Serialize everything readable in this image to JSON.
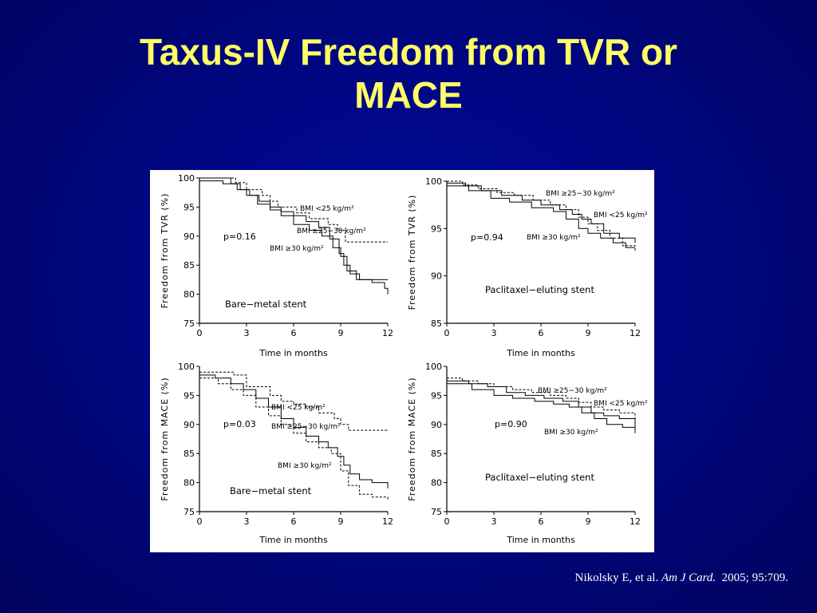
{
  "slide": {
    "title_line1": "Taxus-IV Freedom from TVR or",
    "title_line2": "MACE",
    "title_color": "#ffff66",
    "background_color": "#000682"
  },
  "citation": {
    "authors": "Nikolsky E, et al.",
    "journal": "Am J Card.",
    "details": "2005; 95:709."
  },
  "chart_data": [
    {
      "type": "line",
      "step": true,
      "ylabel": "Freedom from TVR (%)",
      "xlabel": "Time in months",
      "xlim": [
        0,
        12
      ],
      "ylim": [
        75,
        100
      ],
      "xticks": [
        0,
        3,
        6,
        9,
        12
      ],
      "yticks": [
        75,
        80,
        85,
        90,
        95,
        100
      ],
      "p_value": "p=0.16",
      "panel_label": "Bare−metal stent",
      "series": [
        {
          "name": "BMI <25 kg/m²",
          "style": "dashed",
          "x": [
            0,
            2.3,
            3.0,
            4.0,
            4.5,
            5.0,
            6.2,
            7.0,
            8.2,
            8.8,
            9.3,
            12.0
          ],
          "y": [
            100,
            99.2,
            98.0,
            97.0,
            96.0,
            95.0,
            94.0,
            93.0,
            92.0,
            91.0,
            89.0,
            89.0
          ]
        },
        {
          "name": "BMI ≥25–30 kg/m²",
          "style": "solid",
          "x": [
            0,
            2.0,
            2.6,
            3.2,
            3.8,
            4.5,
            5.2,
            6.0,
            6.8,
            7.6,
            8.3,
            8.9,
            9.2,
            9.6,
            10.2,
            12.0
          ],
          "y": [
            100,
            99.0,
            98.0,
            97.0,
            96.0,
            95.0,
            94.2,
            93.5,
            92.5,
            91.5,
            89.5,
            87.0,
            85.0,
            83.5,
            82.5,
            82.5
          ]
        },
        {
          "name": "BMI ≥30 kg/m²",
          "style": "solid",
          "x": [
            0,
            1.5,
            2.4,
            3.0,
            3.7,
            4.5,
            5.2,
            6.0,
            7.0,
            7.8,
            8.5,
            9.0,
            9.4,
            10.0,
            11.0,
            11.8,
            12.0
          ],
          "y": [
            99.5,
            99.0,
            98.0,
            97.0,
            95.5,
            94.5,
            93.5,
            92.0,
            91.0,
            90.0,
            88.0,
            86.5,
            84.0,
            82.5,
            82.0,
            81.0,
            80.0
          ]
        }
      ],
      "labels": [
        "BMI <25 kg/m²",
        "BMI ≥25−30 kg/m²",
        "BMI ≥30 kg/m²"
      ]
    },
    {
      "type": "line",
      "step": true,
      "ylabel": "Freedom from TVR (%)",
      "xlabel": "Time in months",
      "xlim": [
        0,
        12
      ],
      "ylim": [
        85,
        100
      ],
      "xticks": [
        0,
        3,
        6,
        9,
        12
      ],
      "yticks": [
        85,
        90,
        95,
        100
      ],
      "p_value": "p=0.94",
      "panel_label": "Paclitaxel−eluting stent",
      "series": [
        {
          "name": "BMI ≥25–30 kg/m²",
          "style": "dashed",
          "x": [
            0,
            1.0,
            2.0,
            3.2,
            4.3,
            5.5,
            6.6,
            7.6,
            8.4,
            9.0,
            9.6,
            10.4,
            11.2,
            12.0
          ],
          "y": [
            100,
            99.6,
            99.2,
            98.8,
            98.5,
            98.0,
            97.5,
            97.0,
            96.2,
            95.5,
            94.8,
            94.0,
            93.2,
            92.5
          ]
        },
        {
          "name": "BMI <25 kg/m²",
          "style": "solid",
          "x": [
            0,
            1.2,
            2.2,
            3.5,
            4.8,
            6.0,
            7.2,
            8.0,
            8.6,
            9.2,
            10.0,
            11.0,
            12.0
          ],
          "y": [
            99.8,
            99.5,
            99.0,
            98.5,
            98.0,
            97.5,
            97.0,
            96.5,
            96.0,
            95.5,
            94.5,
            94.0,
            93.5
          ]
        },
        {
          "name": "BMI ≥30 kg/m²",
          "style": "solid",
          "x": [
            0,
            1.4,
            2.8,
            4.0,
            5.4,
            6.8,
            7.6,
            8.4,
            9.0,
            9.8,
            10.6,
            11.4,
            12.0
          ],
          "y": [
            99.5,
            99.0,
            98.2,
            97.8,
            97.2,
            96.8,
            96.0,
            95.0,
            94.5,
            94.0,
            93.5,
            93.0,
            93.0
          ]
        }
      ],
      "labels": [
        "BMI ≥25−30 kg/m²",
        "BMI <25 kg/m²",
        "BMI ≥30 kg/m²"
      ]
    },
    {
      "type": "line",
      "step": true,
      "ylabel": "Freedom from MACE (%)",
      "xlabel": "Time in months",
      "xlim": [
        0,
        12
      ],
      "ylim": [
        75,
        100
      ],
      "xticks": [
        0,
        3,
        6,
        9,
        12
      ],
      "yticks": [
        75,
        80,
        85,
        90,
        95,
        100
      ],
      "p_value": "p=0.03",
      "panel_label": "Bare−metal stent",
      "series": [
        {
          "name": "BMI <25 kg/m²",
          "style": "dashed",
          "x": [
            0,
            2.2,
            3.0,
            4.5,
            5.2,
            6.0,
            6.8,
            7.6,
            8.6,
            9.0,
            9.5,
            12.0
          ],
          "y": [
            99.0,
            98.5,
            96.5,
            95.0,
            94.0,
            93.5,
            93.0,
            92.0,
            91.0,
            90.0,
            89.0,
            89.0
          ]
        },
        {
          "name": "BMI ≥25–30 kg/m²",
          "style": "solid",
          "x": [
            0,
            1.0,
            2.0,
            2.8,
            3.6,
            4.4,
            5.2,
            6.0,
            6.8,
            7.6,
            8.2,
            8.8,
            9.2,
            9.6,
            10.2,
            11.0,
            12.0
          ],
          "y": [
            98.5,
            98.0,
            97.0,
            96.0,
            94.5,
            93.0,
            91.0,
            89.5,
            88.0,
            87.0,
            86.0,
            84.5,
            83.0,
            81.5,
            80.5,
            80.0,
            79.0
          ]
        },
        {
          "name": "BMI ≥30 kg/m²",
          "style": "dashed",
          "x": [
            0,
            1.2,
            2.0,
            2.8,
            3.6,
            4.4,
            5.2,
            6.0,
            6.8,
            7.6,
            8.4,
            9.0,
            9.5,
            10.2,
            11.0,
            12.0
          ],
          "y": [
            98.0,
            97.0,
            96.0,
            95.0,
            93.0,
            91.5,
            90.0,
            88.5,
            87.0,
            86.0,
            85.0,
            82.0,
            79.5,
            78.0,
            77.5,
            77.0
          ]
        }
      ],
      "labels": [
        "BMI <25 kg/m²",
        "BMI ≥25−30 kg/m²",
        "BMI ≥30 kg/m²"
      ]
    },
    {
      "type": "line",
      "step": true,
      "ylabel": "Freedom from MACE (%)",
      "xlabel": "Time in months",
      "xlim": [
        0,
        12
      ],
      "ylim": [
        75,
        100
      ],
      "xticks": [
        0,
        3,
        6,
        9,
        12
      ],
      "yticks": [
        75,
        80,
        85,
        90,
        95,
        100
      ],
      "p_value": "p=0.90",
      "panel_label": "Paclitaxel−eluting stent",
      "series": [
        {
          "name": "BMI ≥25–30 kg/m²",
          "style": "dashed",
          "x": [
            0,
            1.0,
            2.0,
            3.0,
            4.2,
            5.4,
            6.6,
            7.6,
            8.4,
            9.2,
            10.0,
            11.0,
            12.0
          ],
          "y": [
            98.0,
            97.5,
            97.0,
            96.5,
            96.0,
            95.5,
            95.0,
            94.5,
            93.8,
            93.0,
            92.5,
            92.0,
            90.5
          ]
        },
        {
          "name": "BMI <25 kg/m²",
          "style": "solid",
          "x": [
            0,
            1.4,
            2.6,
            3.8,
            5.0,
            6.2,
            7.4,
            8.4,
            9.2,
            10.0,
            11.0,
            12.0
          ],
          "y": [
            97.5,
            97.0,
            96.5,
            95.5,
            95.0,
            94.5,
            94.0,
            93.0,
            92.0,
            91.5,
            91.0,
            89.5
          ]
        },
        {
          "name": "BMI ≥30 kg/m²",
          "style": "solid",
          "x": [
            0,
            1.6,
            3.0,
            4.2,
            5.6,
            6.8,
            7.8,
            8.6,
            9.4,
            10.2,
            11.2,
            12.0
          ],
          "y": [
            97.0,
            96.0,
            95.0,
            94.5,
            94.0,
            93.5,
            93.0,
            92.0,
            91.0,
            90.0,
            89.5,
            88.5
          ]
        }
      ],
      "labels": [
        "BMI ≥25−30 kg/m²",
        "BMI <25 kg/m²",
        "BMI ≥30 kg/m²"
      ]
    }
  ]
}
